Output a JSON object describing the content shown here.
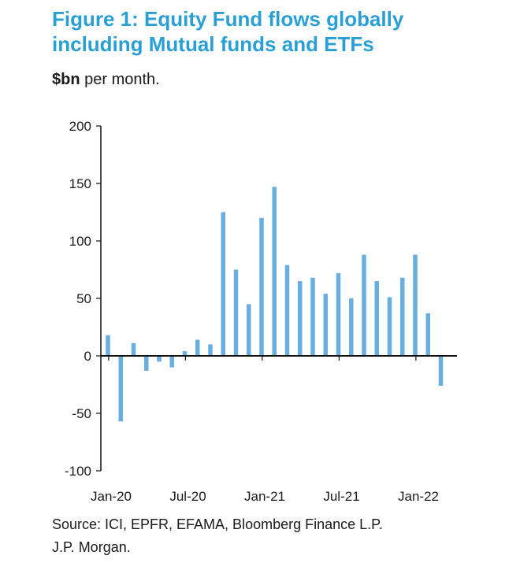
{
  "title_line1": "Figure 1: Equity Fund flows globally",
  "title_line2": "including Mutual funds and ETFs",
  "subtitle_unit": "$bn",
  "subtitle_rest": " per month.",
  "source_line1": "Source: ICI, EPFR, EFAMA, Bloomberg Finance L.P.",
  "source_line2": "J.P. Morgan.",
  "colors": {
    "bar": "#6aaee0",
    "title": "#2a9fd6",
    "axis": "#111111"
  },
  "chart_data": {
    "type": "bar",
    "title": "Figure 1: Equity Fund flows globally including Mutual funds and ETFs",
    "ylabel": "$bn per month.",
    "xlabel": "",
    "ylim": [
      -100,
      200
    ],
    "yticks": [
      200,
      150,
      100,
      50,
      0,
      -50,
      -100
    ],
    "xtick_labels": [
      "Jan-20",
      "Jul-20",
      "Jan-21",
      "Jul-21",
      "Jan-22"
    ],
    "grid": false,
    "categories": [
      "Jan-20",
      "Feb-20",
      "Mar-20",
      "Apr-20",
      "May-20",
      "Jun-20",
      "Jul-20",
      "Aug-20",
      "Sep-20",
      "Oct-20",
      "Nov-20",
      "Dec-20",
      "Jan-21",
      "Feb-21",
      "Mar-21",
      "Apr-21",
      "May-21",
      "Jun-21",
      "Jul-21",
      "Aug-21",
      "Sep-21",
      "Oct-21",
      "Nov-21",
      "Dec-21",
      "Jan-22",
      "Feb-22",
      "Mar-22",
      "Apr-22"
    ],
    "values": [
      18,
      -57,
      11,
      -13,
      -5,
      -10,
      4,
      14,
      10,
      125,
      75,
      45,
      120,
      147,
      79,
      65,
      68,
      54,
      72,
      50,
      88,
      65,
      51,
      68,
      88,
      37,
      -26,
      null
    ]
  }
}
